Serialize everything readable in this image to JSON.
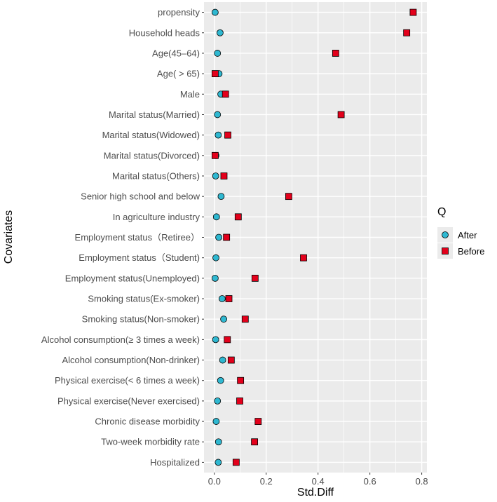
{
  "chart_data": {
    "type": "scatter",
    "title": "",
    "xlabel": "Std.Diff",
    "ylabel": "Covariates",
    "xlim": [
      -0.04,
      0.82
    ],
    "xticks": [
      0.0,
      0.2,
      0.4,
      0.6,
      0.8
    ],
    "xtick_labels": [
      "0.0",
      "0.2",
      "0.4",
      "0.6",
      "0.8"
    ],
    "grid": true,
    "legend_position": "right",
    "legend_title": "Q",
    "categories": [
      "propensity",
      "Household heads",
      "Age(45–64)",
      "Age( > 65)",
      "Male",
      "Marital status(Married)",
      "Marital status(Widowed)",
      "Marital status(Divorced)",
      "Marital status(Others)",
      "Senior high school and below",
      "In agriculture industry",
      "Employment status（Retiree）",
      "Employment status（Student)",
      "Employment status(Unemployed)",
      "Smoking status(Ex-smoker)",
      "Smoking status(Non-smoker)",
      "Alcohol consumption(≥ 3 times a week)",
      "Alcohol consumption(Non-drinker)",
      "Physical exercise(< 6 times a week)",
      "Physical exercise(Never exercised)",
      "Chronic disease morbidity",
      "Two-week morbidity rate",
      "Hospitalized"
    ],
    "series": [
      {
        "name": "After",
        "marker": "circle",
        "color": "#2fb8d1",
        "values": [
          0.003,
          0.022,
          0.012,
          0.018,
          0.025,
          0.012,
          0.015,
          0.006,
          0.005,
          0.026,
          0.008,
          0.017,
          0.006,
          0.003,
          0.03,
          0.036,
          0.005,
          0.032,
          0.024,
          0.012,
          0.007,
          0.016,
          0.015
        ]
      },
      {
        "name": "Before",
        "marker": "square",
        "color": "#e3001b",
        "values": [
          0.767,
          0.742,
          0.468,
          0.003,
          0.043,
          0.489,
          0.052,
          0.003,
          0.037,
          0.287,
          0.092,
          0.047,
          0.344,
          0.157,
          0.056,
          0.119,
          0.05,
          0.065,
          0.101,
          0.098,
          0.169,
          0.155,
          0.084
        ]
      }
    ]
  }
}
